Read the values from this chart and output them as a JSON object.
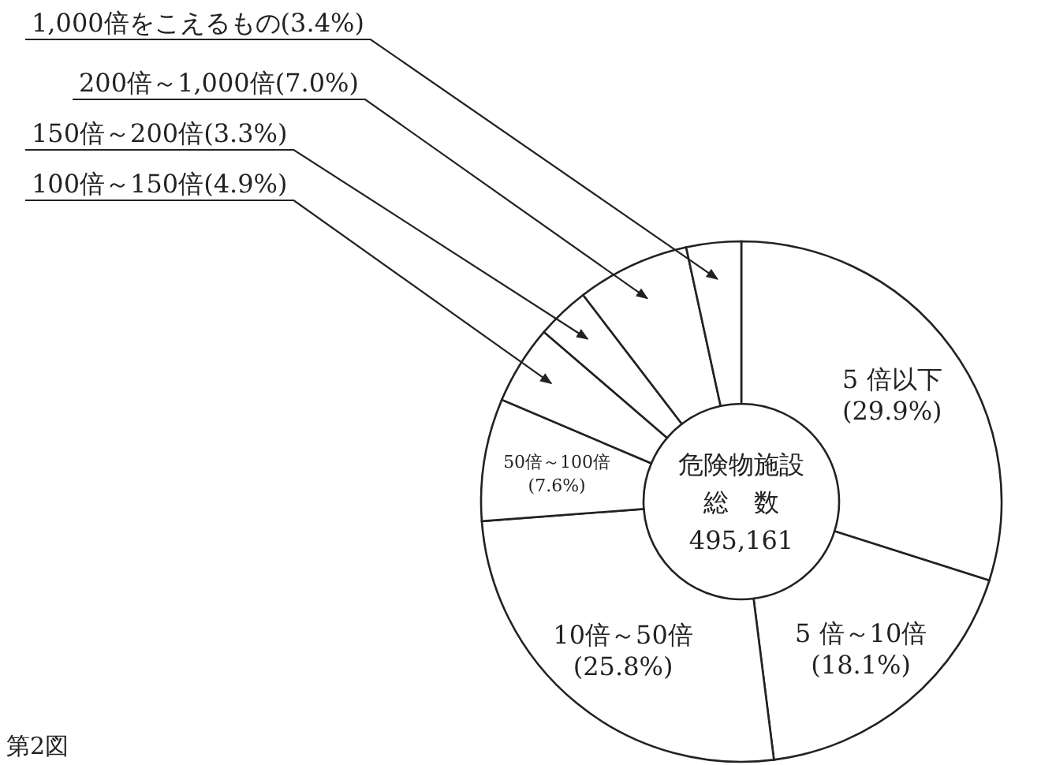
{
  "chart_data": {
    "type": "donut",
    "categories": [
      "5 倍以下",
      "5 倍～10倍",
      "10倍～50倍",
      "50倍～100倍",
      "100倍～150倍",
      "150倍～200倍",
      "200倍～1,000倍",
      "1,000倍をこえるもの"
    ],
    "values": [
      29.9,
      18.1,
      25.8,
      7.6,
      4.9,
      3.3,
      7.0,
      3.4
    ],
    "value_labels": [
      "(29.9%)",
      "(18.1%)",
      "(25.8%)",
      "(7.6%)",
      "(4.9%)",
      "(3.3%)",
      "(7.0%)",
      "(3.4%)"
    ],
    "colors": [
      "#ffffff",
      "#ffffff",
      "#ffffff",
      "#ffffff",
      "#ffffff",
      "#ffffff",
      "#ffffff",
      "#ffffff"
    ],
    "annotations": [
      "危険物施設",
      "総　数",
      "495,161",
      "第2図"
    ]
  }
}
